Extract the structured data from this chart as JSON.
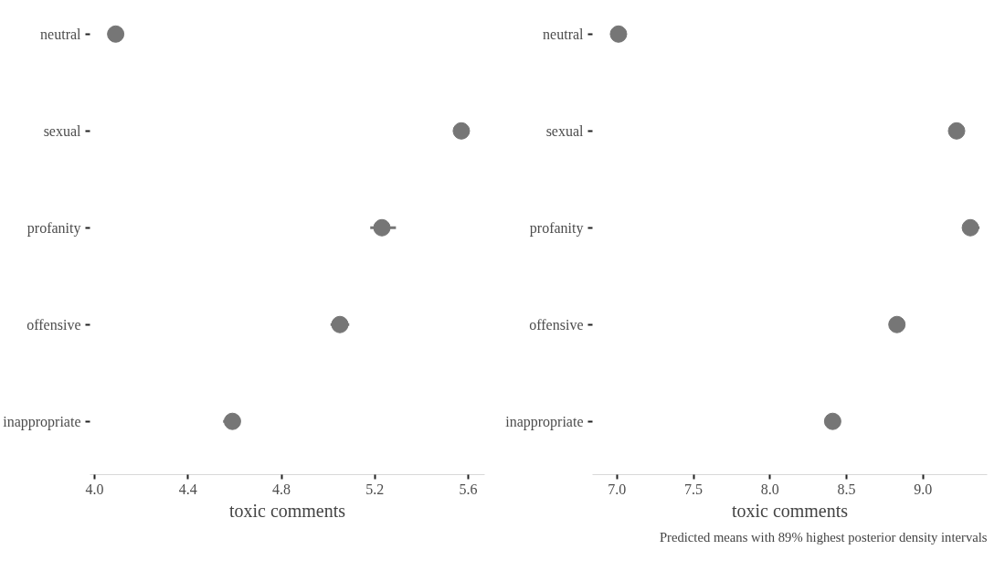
{
  "chart_data": [
    {
      "type": "scatter",
      "categories": [
        "neutral",
        "sexual",
        "profanity",
        "offensive",
        "inappropriate"
      ],
      "orientation": "horizontal",
      "xlabel": "toxic comments",
      "xlim": [
        3.98,
        5.67
      ],
      "xticks": [
        {
          "value": 4.0,
          "label": "4.0"
        },
        4.4,
        4.8,
        5.2,
        5.6
      ],
      "grid": false,
      "marker": "circle",
      "series": [
        {
          "color": "#767676",
          "values": [
            4.09,
            5.57,
            5.23,
            5.05,
            4.59
          ],
          "errors": [
            null,
            null,
            [
              5.18,
              5.29
            ],
            [
              5.01,
              5.09
            ],
            [
              4.55,
              4.62
            ]
          ]
        }
      ]
    },
    {
      "type": "scatter",
      "categories": [
        "neutral",
        "sexual",
        "profanity",
        "offensive",
        "inappropriate"
      ],
      "orientation": "horizontal",
      "xlabel": "toxic comments",
      "xlim": [
        6.84,
        9.42
      ],
      "xticks": [
        {
          "value": 7.0,
          "label": "7.0"
        },
        7.5,
        {
          "value": 8.0,
          "label": "8.0"
        },
        8.5,
        {
          "value": 9.0,
          "label": "9.0"
        }
      ],
      "grid": false,
      "marker": "circle",
      "series": [
        {
          "color": "#767676",
          "values": [
            7.01,
            9.22,
            9.31,
            8.83,
            8.41
          ],
          "errors": [
            null,
            null,
            [
              9.26,
              9.37
            ],
            null,
            null
          ]
        }
      ],
      "annotations": [
        "Predicted means with 89% highest posterior density intervals"
      ]
    }
  ]
}
